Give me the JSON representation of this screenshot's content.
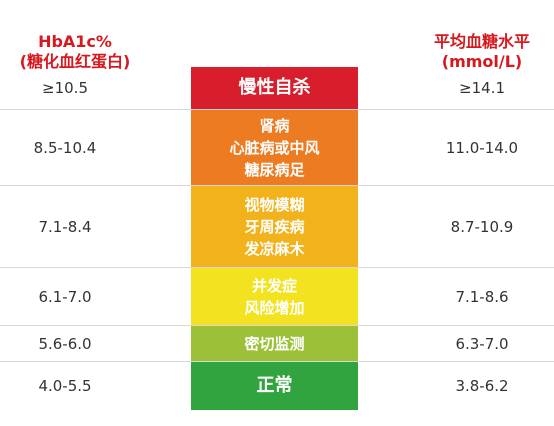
{
  "header": {
    "left_line1": "HbA1c%",
    "left_line2": "(糖化血红蛋白)",
    "right_line1": "平均血糖水平",
    "right_line2": "(mmol/L)"
  },
  "rows": [
    {
      "hba1c": "≥10.5",
      "risk": [
        "慢性自杀"
      ],
      "glucose": "≥14.1",
      "color": "#d81e2c"
    },
    {
      "hba1c": "8.5-10.4",
      "risk": [
        "肾病",
        "心脏病或中风",
        "糖尿病足"
      ],
      "glucose": "11.0-14.0",
      "color": "#ec7b22"
    },
    {
      "hba1c": "7.1-8.4",
      "risk": [
        "视物模糊",
        "牙周疾病",
        "发凉麻木"
      ],
      "glucose": "8.7-10.9",
      "color": "#f2b21b"
    },
    {
      "hba1c": "6.1-7.0",
      "risk": [
        "并发症",
        "风险增加"
      ],
      "glucose": "7.1-8.6",
      "color": "#f3e21f"
    },
    {
      "hba1c": "5.6-6.0",
      "risk": [
        "密切监测"
      ],
      "glucose": "6.3-7.0",
      "color": "#9cc139"
    },
    {
      "hba1c": "4.0-5.5",
      "risk": [
        "正常"
      ],
      "glucose": "3.8-6.2",
      "color": "#31a33f"
    }
  ]
}
